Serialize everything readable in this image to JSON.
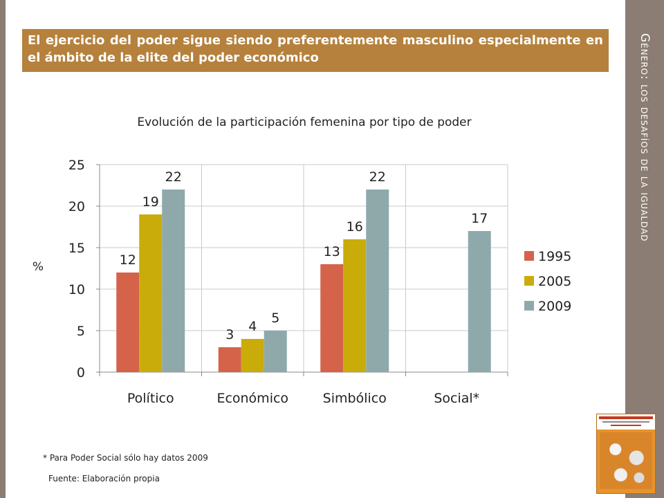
{
  "sidebar": {
    "title": "Género: los desafíos de la igualdad"
  },
  "headline": "El ejercicio del poder sigue siendo preferentemente masculino especialmente en el ámbito de la elite del poder económico",
  "footnote": "* Para Poder Social sólo hay datos 2009",
  "source": "Fuente: Elaboración propia",
  "chart_data": {
    "type": "bar",
    "title": "Evolución de la participación femenina por tipo de poder",
    "xlabel": "",
    "ylabel": "%",
    "ylim": [
      0,
      25
    ],
    "yticks": [
      0,
      5,
      10,
      15,
      20,
      25
    ],
    "grid": true,
    "legend_position": "right",
    "categories": [
      "Político",
      "Económico",
      "Simbólico",
      "Social*"
    ],
    "series": [
      {
        "name": "1995",
        "color": "#d4634a",
        "values": [
          12,
          3,
          13,
          null
        ]
      },
      {
        "name": "2005",
        "color": "#c9ac0a",
        "values": [
          19,
          4,
          16,
          null
        ]
      },
      {
        "name": "2009",
        "color": "#8fa9ab",
        "values": [
          22,
          5,
          22,
          17
        ]
      }
    ]
  }
}
